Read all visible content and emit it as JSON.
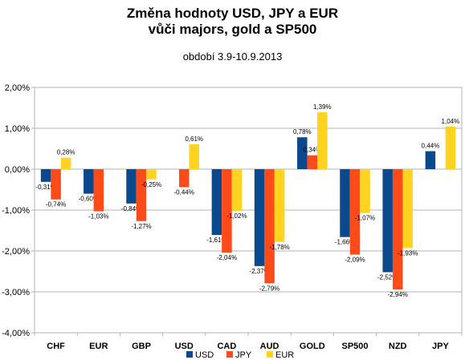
{
  "chart_data": {
    "type": "bar",
    "title_line_1": "Změna hodnoty USD, JPY a EUR",
    "title_line_2": "vůči majors, gold a SP500",
    "subtitle": "období 3.9-10.9.2013",
    "categories": [
      "CHF",
      "EUR",
      "GBP",
      "USD",
      "CAD",
      "AUD",
      "GOLD",
      "SP500",
      "NZD",
      "JPY"
    ],
    "series": [
      {
        "name": "USD",
        "color": "#0a4a8c",
        "values": [
          -0.31,
          -0.6,
          -0.84,
          null,
          -1.61,
          -2.37,
          0.78,
          -1.66,
          -2.52,
          0.44
        ],
        "labels": [
          "-0,31%",
          "-0,60%",
          "-0,84%",
          "",
          "-1,61%",
          "-2,37%",
          "0,78%",
          "-1,66%",
          "-2,52%",
          "0,44%"
        ]
      },
      {
        "name": "JPY",
        "color": "#ff4a1a",
        "values": [
          -0.74,
          -1.03,
          -1.27,
          -0.44,
          -2.04,
          -2.79,
          0.34,
          -2.09,
          -2.94,
          null
        ],
        "labels": [
          "-0,74%",
          "-1,03%",
          "-1,27%",
          "-0,44%",
          "-2,04%",
          "-2,79%",
          "0,34%",
          "-2,09%",
          "-2,94%",
          ""
        ]
      },
      {
        "name": "EUR",
        "color": "#ffd320",
        "values": [
          0.28,
          null,
          -0.25,
          0.61,
          -1.02,
          -1.78,
          1.39,
          -1.07,
          -1.93,
          1.04
        ],
        "labels": [
          "0,28%",
          "",
          "-0,25%",
          "0,61%",
          "-1,02%",
          "-1,78%",
          "1,39%",
          "-1,07%",
          "-1,93%",
          "1,04%"
        ]
      }
    ],
    "yticks": [
      2,
      1,
      0,
      -1,
      -2,
      -3,
      -4
    ],
    "ytick_labels": [
      "2,00%",
      "1,00%",
      "0,00%",
      "-1,00%",
      "-2,00%",
      "-3,00%",
      "-4,00%"
    ],
    "ylim": [
      -4,
      2
    ],
    "grid": true,
    "legend_position": "bottom"
  }
}
